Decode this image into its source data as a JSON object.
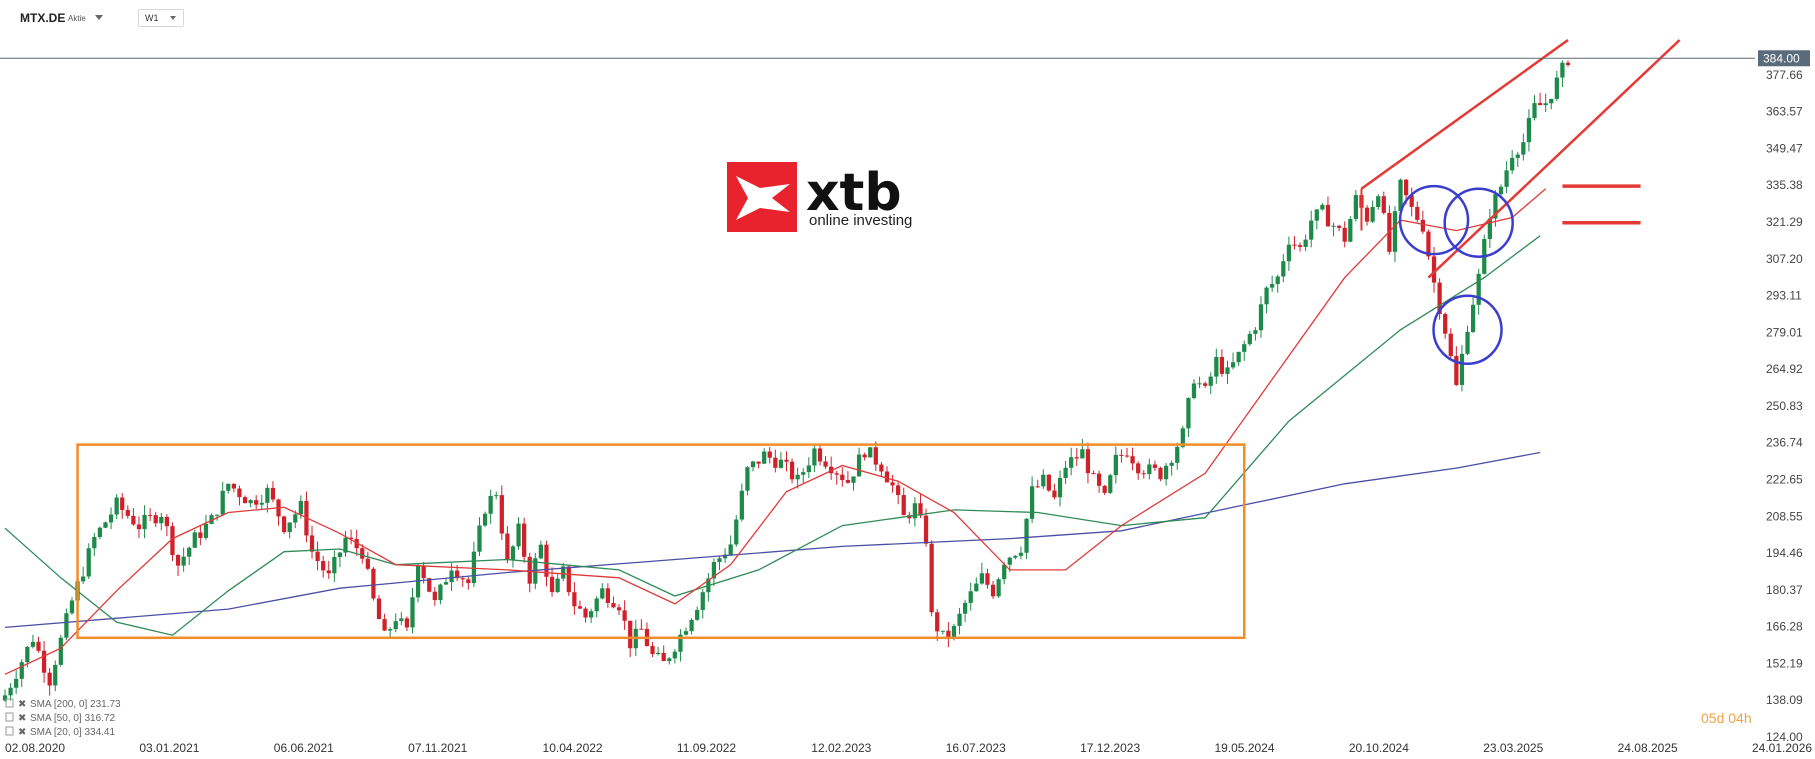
{
  "header": {
    "symbol": "MTX.DE",
    "symbol_type": "Aktie",
    "interval": "W1"
  },
  "logo": {
    "brand": "xtb",
    "tagline": "online investing"
  },
  "countdown": "05d 04h",
  "colors": {
    "bull": "#1e8a4a",
    "bear": "#d0202a",
    "sma200": "#4b4fa6",
    "sma50": "#2e8b57",
    "sma20": "#e03a3a",
    "box": "#f28c28",
    "channel": "#e53935",
    "circle": "#3a3ecf",
    "price_line": "#5a6b7b"
  },
  "chart_data": {
    "type": "candlestick",
    "title": "",
    "ylim": [
      124.0,
      391.0
    ],
    "y_ticks": [
      "377.66",
      "363.57",
      "349.47",
      "335.38",
      "321.29",
      "307.20",
      "293.11",
      "279.01",
      "264.92",
      "250.83",
      "236.74",
      "222.65",
      "208.55",
      "194.46",
      "180.37",
      "166.28",
      "152.19",
      "138.09",
      "124.00"
    ],
    "last_price": "384.00",
    "x_ticks": [
      "02.08.2020",
      "03.01.2021",
      "06.06.2021",
      "07.11.2021",
      "10.04.2022",
      "11.09.2022",
      "12.02.2023",
      "16.07.2023",
      "17.12.2023",
      "19.05.2024",
      "20.10.2024",
      "23.03.2025",
      "24.08.2025",
      "24.01.2026"
    ],
    "close_path": [
      [
        0,
        140
      ],
      [
        5,
        162
      ],
      [
        8,
        146
      ],
      [
        12,
        176
      ],
      [
        16,
        200
      ],
      [
        20,
        213
      ],
      [
        24,
        205
      ],
      [
        28,
        210
      ],
      [
        31,
        190
      ],
      [
        34,
        200
      ],
      [
        37,
        207
      ],
      [
        40,
        221
      ],
      [
        44,
        214
      ],
      [
        47,
        218
      ],
      [
        50,
        205
      ],
      [
        53,
        212
      ],
      [
        55,
        195
      ],
      [
        58,
        185
      ],
      [
        61,
        200
      ],
      [
        64,
        195
      ],
      [
        66,
        176
      ],
      [
        68,
        162
      ],
      [
        70,
        170
      ],
      [
        72,
        164
      ],
      [
        74,
        192
      ],
      [
        77,
        175
      ],
      [
        80,
        190
      ],
      [
        83,
        183
      ],
      [
        86,
        212
      ],
      [
        88,
        218
      ],
      [
        90,
        190
      ],
      [
        92,
        203
      ],
      [
        94,
        185
      ],
      [
        96,
        197
      ],
      [
        98,
        178
      ],
      [
        100,
        187
      ],
      [
        102,
        175
      ],
      [
        104,
        170
      ],
      [
        107,
        180
      ],
      [
        110,
        175
      ],
      [
        112,
        160
      ],
      [
        114,
        165
      ],
      [
        116,
        155
      ],
      [
        118,
        152
      ],
      [
        121,
        163
      ],
      [
        124,
        175
      ],
      [
        127,
        190
      ],
      [
        130,
        198
      ],
      [
        133,
        226
      ],
      [
        136,
        232
      ],
      [
        139,
        229
      ],
      [
        142,
        222
      ],
      [
        145,
        234
      ],
      [
        148,
        228
      ],
      [
        151,
        222
      ],
      [
        154,
        234
      ],
      [
        157,
        228
      ],
      [
        159,
        220
      ],
      [
        161,
        208
      ],
      [
        163,
        212
      ],
      [
        165,
        200
      ],
      [
        166,
        170
      ],
      [
        168,
        162
      ],
      [
        170,
        165
      ],
      [
        172,
        175
      ],
      [
        175,
        185
      ],
      [
        177,
        180
      ],
      [
        179,
        192
      ],
      [
        182,
        197
      ],
      [
        184,
        218
      ],
      [
        186,
        222
      ],
      [
        188,
        215
      ],
      [
        190,
        228
      ],
      [
        193,
        233
      ],
      [
        195,
        222
      ],
      [
        197,
        215
      ],
      [
        199,
        230
      ],
      [
        201,
        234
      ],
      [
        203,
        228
      ],
      [
        205,
        226
      ],
      [
        207,
        225
      ],
      [
        209,
        232
      ],
      [
        211,
        240
      ],
      [
        213,
        262
      ],
      [
        215,
        256
      ],
      [
        217,
        268
      ],
      [
        219,
        263
      ],
      [
        221,
        270
      ],
      [
        224,
        282
      ],
      [
        226,
        295
      ],
      [
        228,
        300
      ],
      [
        230,
        315
      ],
      [
        232,
        311
      ],
      [
        234,
        322
      ],
      [
        236,
        325
      ],
      [
        238,
        320
      ],
      [
        240,
        315
      ],
      [
        242,
        330
      ],
      [
        244,
        323
      ],
      [
        246,
        334
      ],
      [
        248,
        310
      ],
      [
        250,
        335
      ],
      [
        252,
        326
      ],
      [
        254,
        320
      ],
      [
        256,
        298
      ],
      [
        258,
        280
      ],
      [
        260,
        258
      ],
      [
        262,
        282
      ],
      [
        264,
        300
      ],
      [
        266,
        325
      ],
      [
        268,
        335
      ],
      [
        270,
        348
      ],
      [
        272,
        352
      ],
      [
        274,
        365
      ],
      [
        276,
        367
      ],
      [
        278,
        375
      ],
      [
        280,
        384
      ]
    ],
    "series": [
      {
        "name": "SMA [200, 0]",
        "value": "231.73",
        "path": [
          [
            0,
            166
          ],
          [
            40,
            173
          ],
          [
            60,
            181
          ],
          [
            90,
            187
          ],
          [
            120,
            192
          ],
          [
            150,
            197
          ],
          [
            180,
            200
          ],
          [
            200,
            203
          ],
          [
            220,
            212
          ],
          [
            240,
            221
          ],
          [
            260,
            227
          ],
          [
            275,
            233
          ]
        ]
      },
      {
        "name": "SMA [50, 0]",
        "value": "316.72",
        "path": [
          [
            0,
            204
          ],
          [
            10,
            185
          ],
          [
            20,
            168
          ],
          [
            30,
            163
          ],
          [
            40,
            180
          ],
          [
            50,
            195
          ],
          [
            60,
            196
          ],
          [
            70,
            190
          ],
          [
            90,
            192
          ],
          [
            110,
            188
          ],
          [
            120,
            178
          ],
          [
            135,
            188
          ],
          [
            150,
            205
          ],
          [
            170,
            211
          ],
          [
            185,
            210
          ],
          [
            200,
            205
          ],
          [
            215,
            208
          ],
          [
            230,
            245
          ],
          [
            250,
            280
          ],
          [
            265,
            300
          ],
          [
            275,
            316
          ]
        ]
      },
      {
        "name": "SMA [20, 0]",
        "value": "334.41",
        "path": [
          [
            0,
            148
          ],
          [
            10,
            158
          ],
          [
            20,
            180
          ],
          [
            30,
            200
          ],
          [
            40,
            210
          ],
          [
            50,
            212
          ],
          [
            60,
            202
          ],
          [
            70,
            190
          ],
          [
            90,
            188
          ],
          [
            110,
            185
          ],
          [
            120,
            175
          ],
          [
            130,
            190
          ],
          [
            140,
            218
          ],
          [
            150,
            228
          ],
          [
            160,
            222
          ],
          [
            170,
            210
          ],
          [
            180,
            188
          ],
          [
            190,
            188
          ],
          [
            200,
            205
          ],
          [
            215,
            225
          ],
          [
            225,
            255
          ],
          [
            240,
            300
          ],
          [
            250,
            322
          ],
          [
            260,
            318
          ],
          [
            270,
            323
          ],
          [
            276,
            334
          ]
        ]
      }
    ],
    "annotations": {
      "box": {
        "x0": 13,
        "x1": 222,
        "y0": 162,
        "y1": 236
      },
      "channel_upper": [
        [
          243,
          334
        ],
        [
          280,
          391
        ]
      ],
      "channel_lower": [
        [
          255,
          300
        ],
        [
          300,
          391
        ]
      ],
      "circles": [
        {
          "x": 256,
          "y": 322
        },
        {
          "x": 264,
          "y": 321
        },
        {
          "x": 262,
          "y": 280
        }
      ],
      "levels": [
        {
          "x0": 279,
          "x1": 293,
          "y": 335
        },
        {
          "x0": 279,
          "x1": 293,
          "y": 321
        }
      ]
    }
  }
}
